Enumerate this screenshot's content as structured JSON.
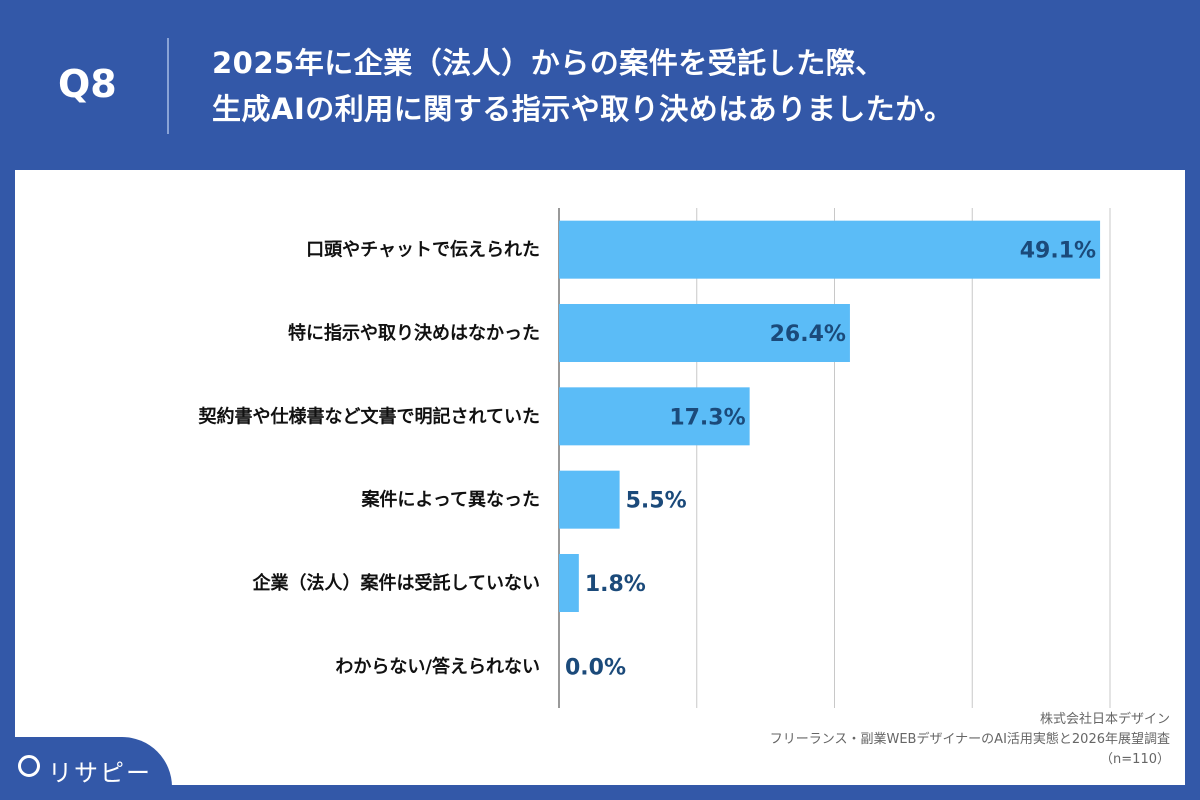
{
  "header": {
    "question_number": "Q8",
    "title_line1": "2025年に企業（法人）からの案件を受託した際、",
    "title_line2": "生成AIの利用に関する指示や取り決めはありましたか。"
  },
  "chart_data": {
    "type": "bar",
    "orientation": "horizontal",
    "categories": [
      "口頭やチャットで伝えられた",
      "特に指示や取り決めはなかった",
      "契約書や仕様書など文書で明記されていた",
      "案件によって異なった",
      "企業（法人）案件は受託していない",
      "わからない/答えられない"
    ],
    "values": [
      49.1,
      26.4,
      17.3,
      5.5,
      1.8,
      0.0
    ],
    "data_labels": [
      "49.1%",
      "26.4%",
      "17.3%",
      "5.5%",
      "1.8%",
      "0.0%"
    ],
    "xlim": [
      0,
      50
    ],
    "grid": true,
    "bar_color": "#5bbcf7",
    "label_color": "#1b4a7a"
  },
  "source": {
    "company": "株式会社日本デザイン",
    "survey": "フリーランス・副業WEBデザイナーのAI活用実態と2026年展望調査",
    "n": "（n=110）"
  },
  "logo": {
    "text": "リサピー"
  }
}
